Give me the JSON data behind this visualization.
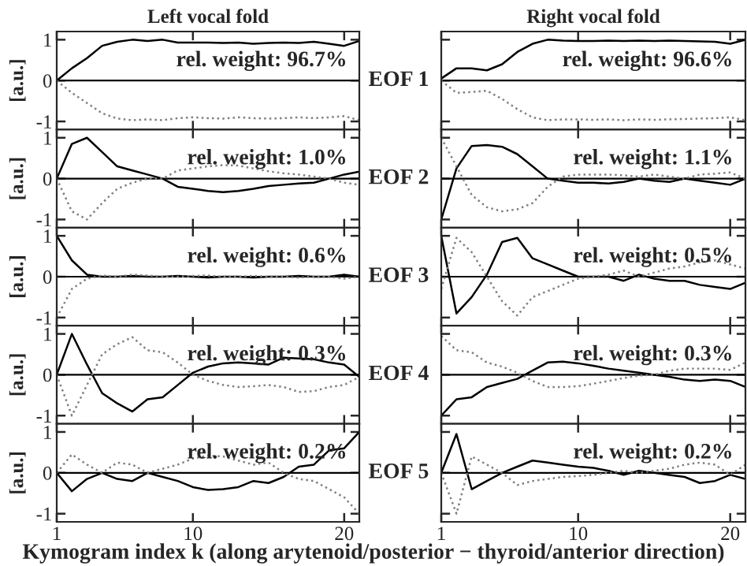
{
  "chart_data": [
    {
      "type": "line",
      "title": "Left vocal fold",
      "ylabel": "[a.u.]",
      "x": [
        1,
        2,
        3,
        4,
        5,
        6,
        7,
        8,
        9,
        10,
        11,
        12,
        13,
        14,
        15,
        16,
        17,
        18,
        19,
        20,
        21
      ],
      "xlim": [
        1,
        21
      ],
      "ylim": [
        -1.2,
        1.2
      ],
      "xticks": [
        1,
        10,
        20
      ],
      "yticks": [
        -1,
        0,
        1
      ],
      "tick_labels": "y",
      "ref_lines": [
        {
          "axis": "y",
          "value": 0,
          "color": "#000000"
        }
      ],
      "annotations": [
        "rel. weight: 96.7%"
      ],
      "series": [
        {
          "color": "#000000",
          "line_style": "solid",
          "values": [
            0,
            0.3,
            0.55,
            0.85,
            0.95,
            1.0,
            0.97,
            1.0,
            0.93,
            0.93,
            0.93,
            0.92,
            0.93,
            0.9,
            0.92,
            0.93,
            0.92,
            0.95,
            0.9,
            0.85,
            0.97
          ]
        },
        {
          "color": "#808080",
          "line_style": "dotted",
          "values": [
            0,
            -0.3,
            -0.55,
            -0.8,
            -0.93,
            -0.97,
            -0.95,
            -0.97,
            -0.92,
            -0.9,
            -0.92,
            -0.93,
            -0.9,
            -0.92,
            -0.93,
            -0.92,
            -0.9,
            -0.92,
            -0.9,
            -0.87,
            -0.97
          ]
        }
      ]
    },
    {
      "type": "line",
      "ylabel": "EOF 1",
      "title": "Right vocal fold",
      "x": [
        1,
        2,
        3,
        4,
        5,
        6,
        7,
        8,
        9,
        10,
        11,
        12,
        13,
        14,
        15,
        16,
        17,
        18,
        19,
        20,
        21
      ],
      "xlim": [
        1,
        21
      ],
      "ylim": [
        -1.2,
        1.2
      ],
      "xticks": [
        1,
        10,
        20
      ],
      "yticks": [
        {
          "value": -1,
          "label": null
        },
        {
          "value": 0,
          "label": null
        },
        {
          "value": 1,
          "label": null
        }
      ],
      "tick_labels": false,
      "ref_lines": [
        {
          "axis": "y",
          "value": 0,
          "color": "#000000"
        }
      ],
      "annotations": [
        "rel. weight: 96.6%"
      ],
      "series": [
        {
          "color": "#000000",
          "line_style": "solid",
          "values": [
            0.05,
            0.3,
            0.3,
            0.25,
            0.4,
            0.7,
            0.9,
            1.0,
            0.98,
            0.97,
            0.97,
            0.98,
            0.97,
            0.98,
            0.97,
            0.98,
            0.97,
            0.96,
            0.95,
            0.9,
            1.0
          ]
        },
        {
          "color": "#808080",
          "line_style": "dotted",
          "values": [
            0,
            -0.3,
            -0.28,
            -0.25,
            -0.45,
            -0.7,
            -0.9,
            -0.97,
            -0.95,
            -0.95,
            -0.96,
            -0.95,
            -0.97,
            -0.95,
            -0.96,
            -0.95,
            -0.94,
            -0.93,
            -0.92,
            -0.9,
            -0.97
          ]
        }
      ]
    },
    {
      "type": "line",
      "ylabel": "[a.u.]",
      "x": [
        1,
        2,
        3,
        4,
        5,
        6,
        7,
        8,
        9,
        10,
        11,
        12,
        13,
        14,
        15,
        16,
        17,
        18,
        19,
        20,
        21
      ],
      "xlim": [
        1,
        21
      ],
      "ylim": [
        -1.2,
        1.2
      ],
      "xticks": [
        1,
        10,
        20
      ],
      "yticks": [
        -1,
        0,
        1
      ],
      "tick_labels": "y",
      "ref_lines": [
        {
          "axis": "y",
          "value": 0,
          "color": "#000000"
        }
      ],
      "annotations": [
        "rel. weight: 1.0%"
      ],
      "series": [
        {
          "color": "#000000",
          "line_style": "solid",
          "values": [
            0,
            0.85,
            1.0,
            0.65,
            0.3,
            0.2,
            0.1,
            0.0,
            -0.2,
            -0.25,
            -0.3,
            -0.33,
            -0.3,
            -0.25,
            -0.18,
            -0.15,
            -0.12,
            -0.1,
            0.0,
            0.1,
            0.17
          ]
        },
        {
          "color": "#808080",
          "line_style": "dotted",
          "values": [
            0,
            -0.8,
            -1.0,
            -0.6,
            -0.25,
            -0.1,
            0,
            0.0,
            0.2,
            0.25,
            0.3,
            0.33,
            0.32,
            0.25,
            0.18,
            0.13,
            0.1,
            0.05,
            0.0,
            -0.1,
            -0.15
          ]
        }
      ]
    },
    {
      "type": "line",
      "ylabel": "EOF 2",
      "x": [
        1,
        2,
        3,
        4,
        5,
        6,
        7,
        8,
        9,
        10,
        11,
        12,
        13,
        14,
        15,
        16,
        17,
        18,
        19,
        20,
        21
      ],
      "xlim": [
        1,
        21
      ],
      "ylim": [
        -1.2,
        1.2
      ],
      "xticks": [
        1,
        10,
        20
      ],
      "yticks": [
        {
          "value": -1,
          "label": null
        },
        {
          "value": 0,
          "label": null
        },
        {
          "value": 1,
          "label": null
        }
      ],
      "tick_labels": false,
      "ref_lines": [
        {
          "axis": "y",
          "value": 0,
          "color": "#000000"
        }
      ],
      "annotations": [
        "rel. weight: 1.1%"
      ],
      "series": [
        {
          "color": "#000000",
          "line_style": "solid",
          "values": [
            -1.0,
            0.25,
            0.8,
            0.82,
            0.78,
            0.6,
            0.3,
            0.0,
            -0.05,
            -0.1,
            -0.1,
            -0.12,
            -0.08,
            0.0,
            -0.05,
            -0.08,
            0.0,
            -0.05,
            -0.1,
            -0.15,
            0.0
          ]
        },
        {
          "color": "#808080",
          "line_style": "dotted",
          "values": [
            1.0,
            0.3,
            -0.4,
            -0.7,
            -0.8,
            -0.75,
            -0.6,
            -0.2,
            0.05,
            0.1,
            0.1,
            0.1,
            0.08,
            0.05,
            0.1,
            0.05,
            0.0,
            0.1,
            0.12,
            0.15,
            0.0
          ]
        }
      ]
    },
    {
      "type": "line",
      "ylabel": "[a.u.]",
      "x": [
        1,
        2,
        3,
        4,
        5,
        6,
        7,
        8,
        9,
        10,
        11,
        12,
        13,
        14,
        15,
        16,
        17,
        18,
        19,
        20,
        21
      ],
      "xlim": [
        1,
        21
      ],
      "ylim": [
        -1.2,
        1.2
      ],
      "xticks": [
        1,
        10,
        20
      ],
      "yticks": [
        -1,
        0,
        1
      ],
      "tick_labels": "y",
      "ref_lines": [
        {
          "axis": "y",
          "value": 0,
          "color": "#000000"
        }
      ],
      "annotations": [
        "rel. weight: 0.6%"
      ],
      "series": [
        {
          "color": "#000000",
          "line_style": "solid",
          "values": [
            1.0,
            0.4,
            0.05,
            0.0,
            0.0,
            0.02,
            0.0,
            0.0,
            0.02,
            0.0,
            -0.02,
            0.0,
            0.0,
            -0.02,
            0.0,
            0.0,
            0.02,
            0.0,
            0.0,
            0.05,
            0.0
          ]
        },
        {
          "color": "#808080",
          "line_style": "dotted",
          "values": [
            -1.0,
            -0.3,
            -0.05,
            0.03,
            0.0,
            0.05,
            0.03,
            0.0,
            0.0,
            0.02,
            0.03,
            0.0,
            0.0,
            0.02,
            0.0,
            0.0,
            -0.02,
            0.0,
            0.0,
            -0.05,
            0.0
          ]
        }
      ]
    },
    {
      "type": "line",
      "ylabel": "EOF 3",
      "x": [
        1,
        2,
        3,
        4,
        5,
        6,
        7,
        8,
        9,
        10,
        11,
        12,
        13,
        14,
        15,
        16,
        17,
        18,
        19,
        20,
        21
      ],
      "xlim": [
        1,
        21
      ],
      "ylim": [
        -1.2,
        1.2
      ],
      "xticks": [
        1,
        10,
        20
      ],
      "yticks": [
        {
          "value": -1,
          "label": null
        },
        {
          "value": 0,
          "label": null
        },
        {
          "value": 1,
          "label": null
        }
      ],
      "tick_labels": false,
      "ref_lines": [
        {
          "axis": "y",
          "value": 0,
          "color": "#000000"
        }
      ],
      "annotations": [
        "rel. weight: 0.5%"
      ],
      "series": [
        {
          "color": "#000000",
          "line_style": "solid",
          "values": [
            1.0,
            -0.9,
            -0.5,
            0.05,
            0.85,
            0.95,
            0.45,
            0.3,
            0.15,
            0.0,
            0.0,
            0.0,
            -0.1,
            0.05,
            -0.05,
            -0.1,
            -0.1,
            -0.2,
            -0.25,
            -0.3,
            -0.15
          ]
        },
        {
          "color": "#808080",
          "line_style": "dotted",
          "values": [
            -0.3,
            0.95,
            0.6,
            0.0,
            -0.6,
            -0.95,
            -0.5,
            -0.35,
            -0.2,
            -0.05,
            0.0,
            0.05,
            0.15,
            0.0,
            0.1,
            0.2,
            0.25,
            0.35,
            0.4,
            0.3,
            0.2
          ]
        }
      ]
    },
    {
      "type": "line",
      "ylabel": "[a.u.]",
      "x": [
        1,
        2,
        3,
        4,
        5,
        6,
        7,
        8,
        9,
        10,
        11,
        12,
        13,
        14,
        15,
        16,
        17,
        18,
        19,
        20,
        21
      ],
      "xlim": [
        1,
        21
      ],
      "ylim": [
        -1.2,
        1.2
      ],
      "xticks": [
        1,
        10,
        20
      ],
      "yticks": [
        -1,
        0,
        1
      ],
      "tick_labels": "y",
      "ref_lines": [
        {
          "axis": "y",
          "value": 0,
          "color": "#000000"
        }
      ],
      "annotations": [
        "rel. weight: 0.3%"
      ],
      "series": [
        {
          "color": "#000000",
          "line_style": "solid",
          "values": [
            0,
            1.0,
            0.25,
            -0.45,
            -0.7,
            -0.9,
            -0.6,
            -0.55,
            -0.25,
            0.05,
            0.2,
            0.28,
            0.3,
            0.28,
            0.25,
            0.42,
            0.4,
            0.38,
            0.3,
            0.25,
            -0.05
          ]
        },
        {
          "color": "#808080",
          "line_style": "dotted",
          "values": [
            0,
            -1.0,
            -0.25,
            0.5,
            0.75,
            0.92,
            0.6,
            0.55,
            0.3,
            0.0,
            -0.15,
            -0.25,
            -0.3,
            -0.28,
            -0.25,
            -0.3,
            -0.42,
            -0.4,
            -0.3,
            -0.25,
            -0.05
          ]
        }
      ]
    },
    {
      "type": "line",
      "ylabel": "EOF 4",
      "x": [
        1,
        2,
        3,
        4,
        5,
        6,
        7,
        8,
        9,
        10,
        11,
        12,
        13,
        14,
        15,
        16,
        17,
        18,
        19,
        20,
        21
      ],
      "xlim": [
        1,
        21
      ],
      "ylim": [
        -1.2,
        1.2
      ],
      "xticks": [
        1,
        10,
        20
      ],
      "yticks": [
        {
          "value": -1,
          "label": null
        },
        {
          "value": 0,
          "label": null
        },
        {
          "value": 1,
          "label": null
        }
      ],
      "tick_labels": false,
      "ref_lines": [
        {
          "axis": "y",
          "value": 0,
          "color": "#000000"
        }
      ],
      "annotations": [
        "rel. weight: 0.3%"
      ],
      "series": [
        {
          "color": "#000000",
          "line_style": "solid",
          "values": [
            -1.0,
            -0.6,
            -0.55,
            -0.3,
            -0.2,
            -0.1,
            0.1,
            0.3,
            0.32,
            0.28,
            0.22,
            0.15,
            0.1,
            0.05,
            0.0,
            -0.05,
            -0.12,
            -0.15,
            -0.12,
            -0.15,
            -0.3
          ]
        },
        {
          "color": "#808080",
          "line_style": "dotted",
          "values": [
            0.95,
            0.6,
            0.55,
            0.3,
            0.2,
            0.05,
            -0.15,
            -0.3,
            -0.3,
            -0.28,
            -0.22,
            -0.15,
            -0.08,
            -0.02,
            0.0,
            0.1,
            0.15,
            0.15,
            0.15,
            0.12,
            0.3
          ]
        }
      ]
    },
    {
      "type": "line",
      "ylabel": "[a.u.]",
      "xlabel": "Kymogram index k (along arytenoid/posterior − thyroid/anterior direction)",
      "x": [
        1,
        2,
        3,
        4,
        5,
        6,
        7,
        8,
        9,
        10,
        11,
        12,
        13,
        14,
        15,
        16,
        17,
        18,
        19,
        20,
        21
      ],
      "xlim": [
        1,
        21
      ],
      "ylim": [
        -1.2,
        1.2
      ],
      "xticks": [
        1,
        10,
        20
      ],
      "yticks": [
        -1,
        0,
        1
      ],
      "ref_lines": [
        {
          "axis": "y",
          "value": 0,
          "color": "#000000"
        }
      ],
      "annotations": [
        "rel. weight: 0.2%"
      ],
      "series": [
        {
          "color": "#000000",
          "line_style": "solid",
          "values": [
            0,
            -0.45,
            -0.15,
            0.0,
            -0.15,
            -0.2,
            0.0,
            -0.1,
            -0.2,
            -0.35,
            -0.42,
            -0.4,
            -0.35,
            -0.2,
            -0.25,
            -0.1,
            0.15,
            0.2,
            0.55,
            0.6,
            1.0
          ]
        },
        {
          "color": "#808080",
          "line_style": "dotted",
          "values": [
            0,
            0.45,
            0.2,
            0.0,
            0.25,
            0.2,
            0.0,
            0.1,
            0.2,
            0.35,
            0.42,
            0.4,
            0.3,
            0.2,
            0.25,
            0.0,
            -0.15,
            -0.2,
            -0.4,
            -0.6,
            -1.0
          ]
        }
      ]
    },
    {
      "type": "line",
      "ylabel": "EOF 5",
      "x": [
        1,
        2,
        3,
        4,
        5,
        6,
        7,
        8,
        9,
        10,
        11,
        12,
        13,
        14,
        15,
        16,
        17,
        18,
        19,
        20,
        21
      ],
      "xlim": [
        1,
        21
      ],
      "ylim": [
        -1.2,
        1.2
      ],
      "xticks": [
        1,
        10,
        20
      ],
      "yticks": [
        {
          "value": -1,
          "label": null
        },
        {
          "value": 0,
          "label": null
        },
        {
          "value": 1,
          "label": null
        }
      ],
      "tick_labels": "x",
      "ref_lines": [
        {
          "axis": "y",
          "value": 0,
          "color": "#000000"
        }
      ],
      "annotations": [
        "rel. weight: 0.2%"
      ],
      "series": [
        {
          "color": "#000000",
          "line_style": "solid",
          "values": [
            0.0,
            0.95,
            -0.4,
            -0.2,
            0.0,
            0.15,
            0.3,
            0.25,
            0.2,
            0.15,
            0.12,
            0.05,
            -0.05,
            0.05,
            0.0,
            -0.05,
            -0.1,
            -0.25,
            -0.2,
            -0.05,
            -0.15
          ]
        },
        {
          "color": "#808080",
          "line_style": "dotted",
          "values": [
            0.0,
            -1.0,
            0.4,
            0.2,
            0.0,
            -0.3,
            -0.2,
            -0.15,
            -0.1,
            -0.08,
            -0.05,
            0.0,
            0.05,
            0.0,
            0.05,
            0.1,
            0.2,
            0.25,
            0.2,
            -0.05,
            0.2
          ]
        }
      ]
    }
  ]
}
